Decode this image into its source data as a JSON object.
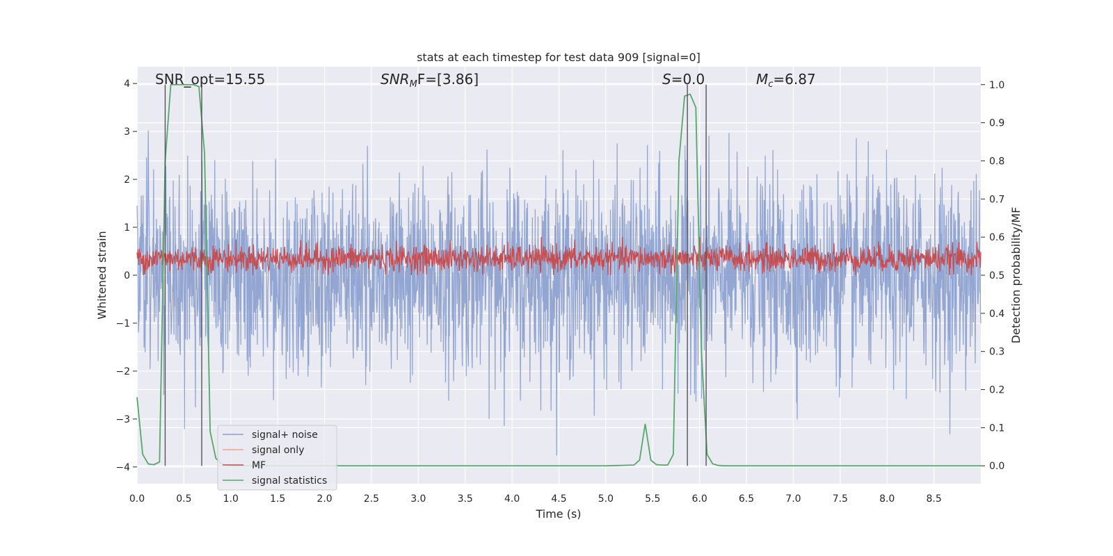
{
  "chart_data": {
    "type": "line",
    "title": "stats at each timestep for test data 909 [signal=0]",
    "xlabel": "Time (s)",
    "ylabel": "Whitened strain",
    "y2label": "Detection probability/MF",
    "xlim": [
      0.0,
      9.0
    ],
    "ylim": [
      -4.35,
      4.35
    ],
    "y2lim": [
      -0.047,
      1.047
    ],
    "xticks": [
      0.0,
      0.5,
      1.0,
      1.5,
      2.0,
      2.5,
      3.0,
      3.5,
      4.0,
      4.5,
      5.0,
      5.5,
      6.0,
      6.5,
      7.0,
      7.5,
      8.0,
      8.5
    ],
    "xtick_labels": [
      "0.0",
      "0.5",
      "1.0",
      "1.5",
      "2.0",
      "2.5",
      "3.0",
      "3.5",
      "4.0",
      "4.5",
      "5.0",
      "5.5",
      "6.0",
      "6.5",
      "7.0",
      "7.5",
      "8.0",
      "8.5"
    ],
    "yticks": [
      -4,
      -3,
      -2,
      -1,
      0,
      1,
      2,
      3,
      4
    ],
    "ytick_labels": [
      "−4",
      "−3",
      "−2",
      "−1",
      "0",
      "1",
      "2",
      "3",
      "4"
    ],
    "y2ticks": [
      0.0,
      0.1,
      0.2,
      0.3,
      0.4,
      0.5,
      0.6,
      0.7,
      0.8,
      0.9,
      1.0
    ],
    "y2tick_labels": [
      "0.0",
      "0.1",
      "0.2",
      "0.3",
      "0.4",
      "0.5",
      "0.6",
      "0.7",
      "0.8",
      "0.9",
      "1.0"
    ],
    "grid": true,
    "legend_position": "lower-left",
    "annotations": {
      "snr_opt": "SNR_opt=15.55",
      "snr_mf_symbol": "SNR",
      "snr_mf_sub": "M",
      "snr_mf_tail": "F=[3.86]",
      "s_symbol": "S",
      "s_value": "=0.0",
      "mc_symbol": "M",
      "mc_sub": "c",
      "mc_value": "=6.87"
    },
    "vertical_lines_x": [
      0.3,
      0.69,
      5.87,
      6.07
    ],
    "series": [
      {
        "name": "signal+ noise",
        "color": "#8a9fce",
        "axis": "left",
        "description_range": [
          -4.0,
          4.0
        ],
        "typical_amplitude": 1.0
      },
      {
        "name": "signal only",
        "color": "#f0a583",
        "axis": "left",
        "values": []
      },
      {
        "name": "MF",
        "color": "#c44e52",
        "axis": "left",
        "center": 0.35,
        "min": 0.0,
        "max": 0.8
      },
      {
        "name": "signal statistics",
        "color": "#55a868",
        "axis": "right",
        "x": [
          0.0,
          0.06,
          0.12,
          0.18,
          0.24,
          0.3,
          0.36,
          0.42,
          0.48,
          0.54,
          0.6,
          0.66,
          0.72,
          0.78,
          0.84,
          0.9,
          0.96,
          1.02,
          1.2,
          2.0,
          3.0,
          4.0,
          5.0,
          5.3,
          5.36,
          5.42,
          5.48,
          5.54,
          5.6,
          5.66,
          5.72,
          5.78,
          5.84,
          5.9,
          5.96,
          6.02,
          6.08,
          6.14,
          6.2,
          6.26,
          6.32,
          7.0,
          8.0,
          9.0
        ],
        "y": [
          0.18,
          0.03,
          0.005,
          0.003,
          0.01,
          0.8,
          1.0,
          1.0,
          1.0,
          1.0,
          1.0,
          0.995,
          0.82,
          0.09,
          0.02,
          0.005,
          0.002,
          0.0,
          0.0,
          0.0,
          0.0,
          0.0,
          0.0,
          0.002,
          0.015,
          0.11,
          0.015,
          0.003,
          0.002,
          0.002,
          0.03,
          0.8,
          0.97,
          0.975,
          0.94,
          0.3,
          0.03,
          0.005,
          0.001,
          0.0,
          0.0,
          0.0,
          0.0,
          0.0
        ]
      }
    ]
  }
}
